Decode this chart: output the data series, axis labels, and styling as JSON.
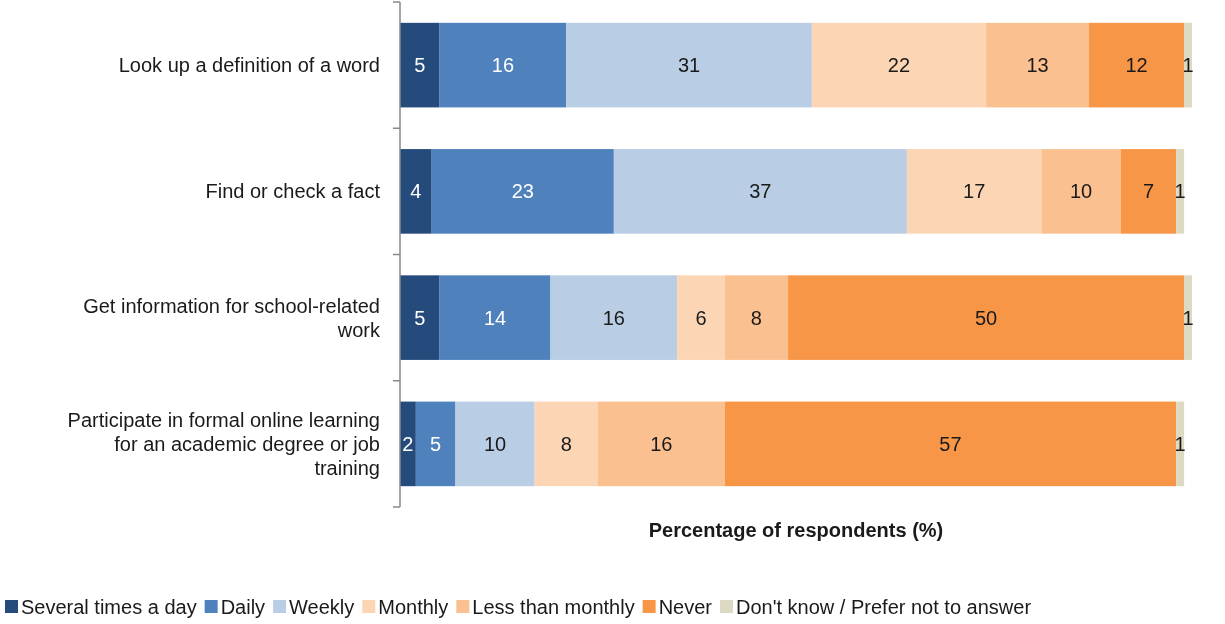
{
  "chart_data": {
    "type": "bar",
    "orientation": "horizontal",
    "stacked": true,
    "data_labels": true,
    "legend": "bottom",
    "xlabel": "Percentage of respondents (%)",
    "categories": [
      "Look up a definition of a word",
      "Find or check a fact",
      "Get information for school-related work",
      "Participate in formal online learning for an academic degree or job training"
    ],
    "series": [
      {
        "name": "Several times a day",
        "color": "#254a7c",
        "values": [
          5,
          4,
          5,
          2
        ]
      },
      {
        "name": "Daily",
        "color": "#4f81bd",
        "values": [
          16,
          23,
          14,
          5
        ]
      },
      {
        "name": "Weekly",
        "color": "#b9cde5",
        "values": [
          31,
          37,
          16,
          10
        ]
      },
      {
        "name": "Monthly",
        "color": "#fcd5b5",
        "values": [
          22,
          17,
          6,
          8
        ]
      },
      {
        "name": "Less than monthly",
        "color": "#fac090",
        "values": [
          13,
          10,
          8,
          16
        ]
      },
      {
        "name": "Never",
        "color": "#f79646",
        "values": [
          12,
          7,
          50,
          57
        ]
      },
      {
        "name": "Don't know / Prefer not to answer",
        "color": "#ddd9c3",
        "values": [
          1,
          1,
          1,
          1
        ]
      }
    ]
  }
}
